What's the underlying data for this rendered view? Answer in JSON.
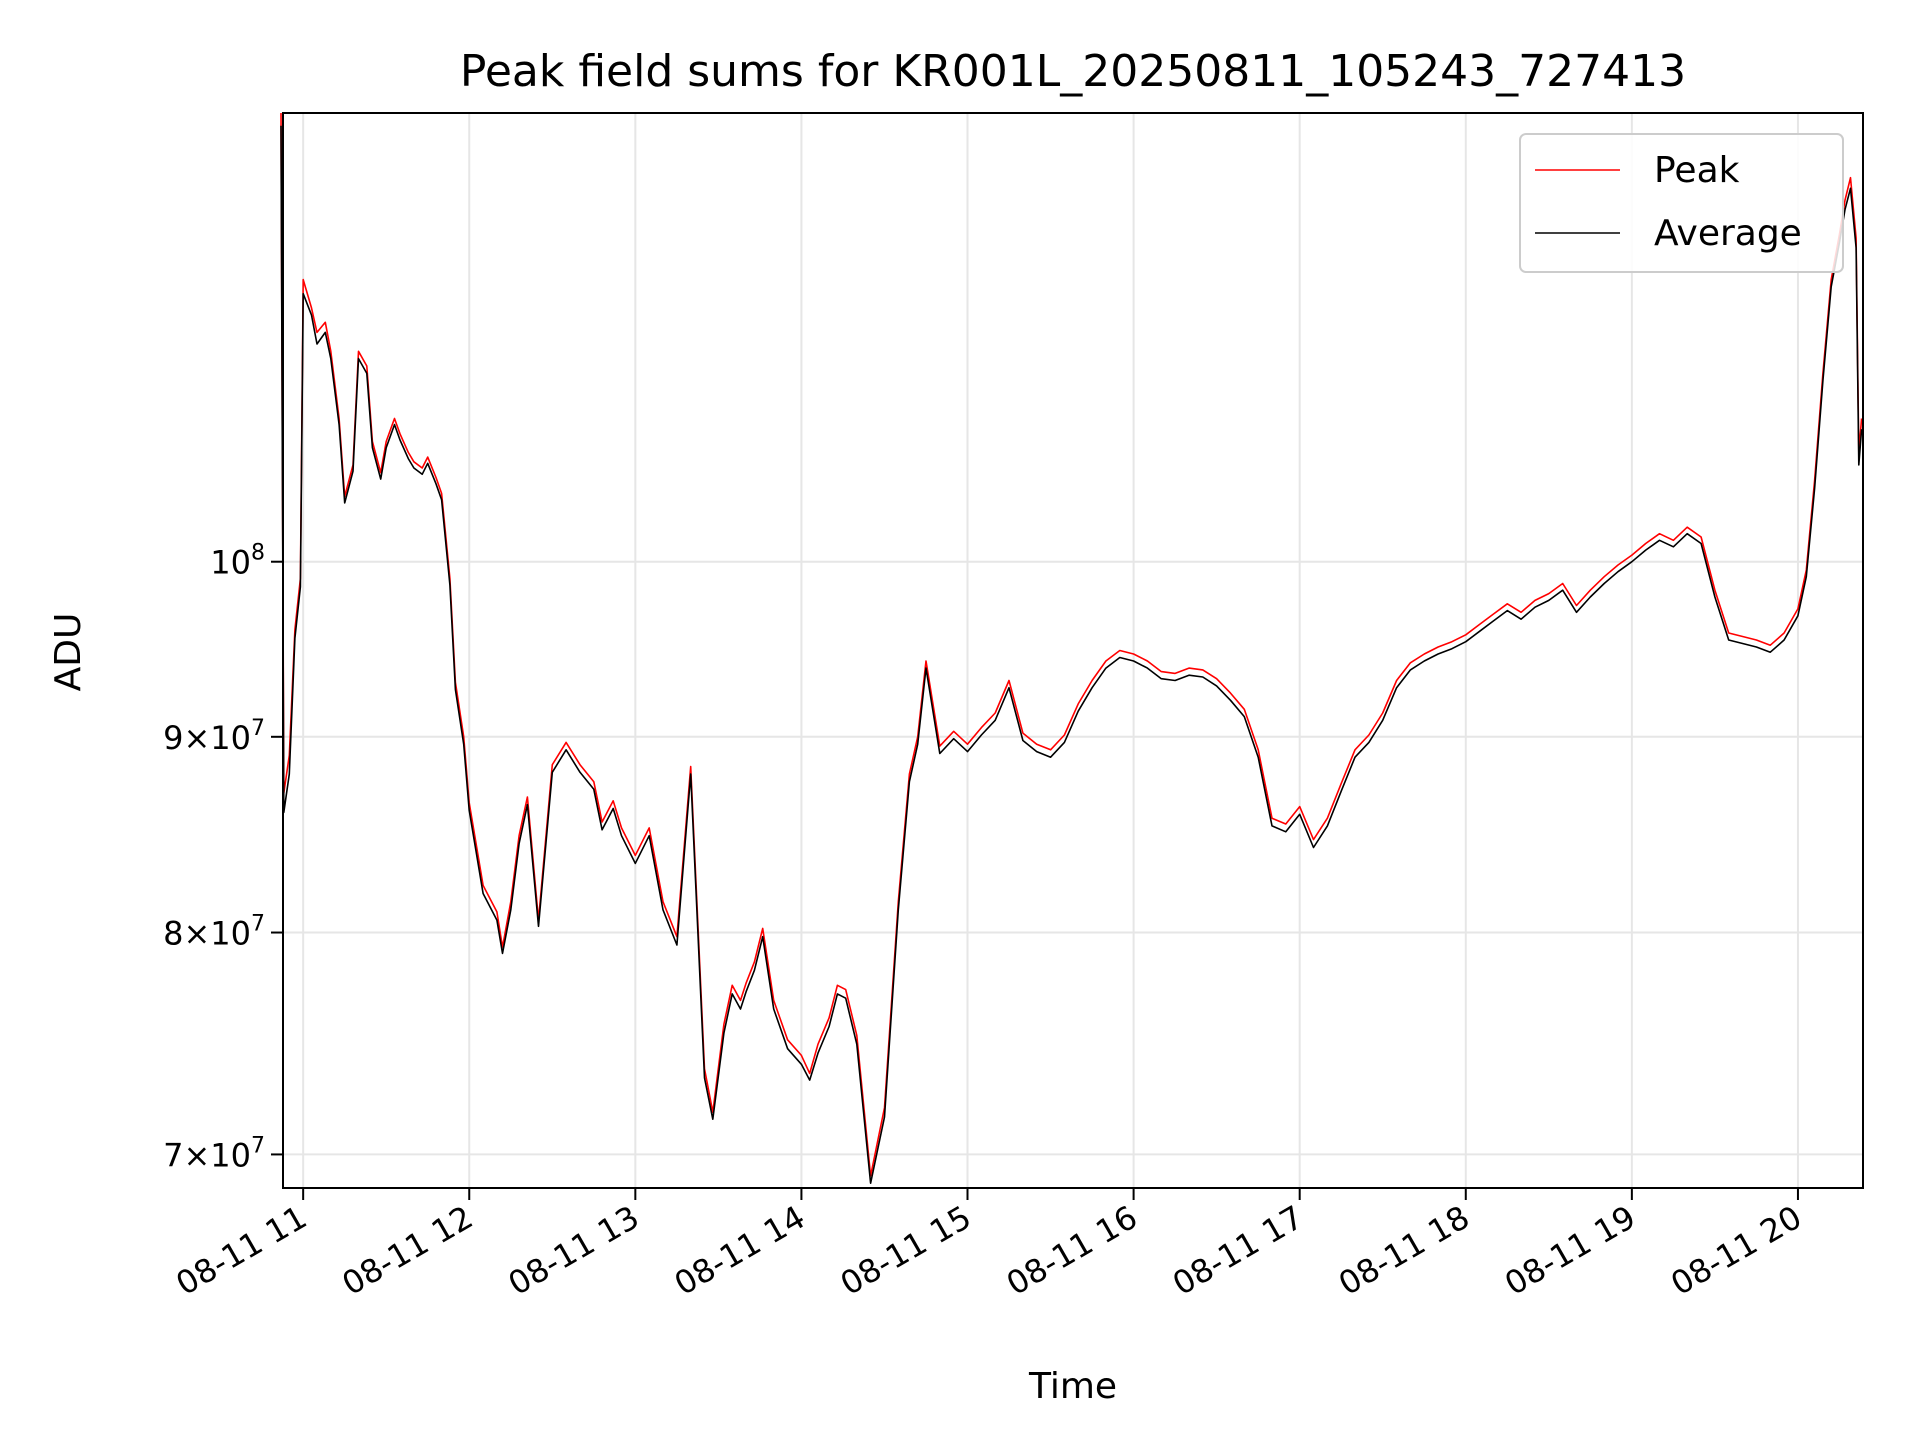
{
  "chart_data": {
    "type": "line",
    "title": "Peak field sums for KR001L_20250811_105243_727413",
    "xlabel": "Time",
    "ylabel": "ADU",
    "x_axis": {
      "type": "time",
      "range": [
        "2025-08-11T10:52:43",
        "2025-08-11T20:23:30"
      ],
      "ticks": [
        {
          "value": "2025-08-11T11:00",
          "label": "08-11 11"
        },
        {
          "value": "2025-08-11T12:00",
          "label": "08-11 12"
        },
        {
          "value": "2025-08-11T13:00",
          "label": "08-11 13"
        },
        {
          "value": "2025-08-11T14:00",
          "label": "08-11 14"
        },
        {
          "value": "2025-08-11T15:00",
          "label": "08-11 15"
        },
        {
          "value": "2025-08-11T16:00",
          "label": "08-11 16"
        },
        {
          "value": "2025-08-11T17:00",
          "label": "08-11 17"
        },
        {
          "value": "2025-08-11T18:00",
          "label": "08-11 18"
        },
        {
          "value": "2025-08-11T19:00",
          "label": "08-11 19"
        },
        {
          "value": "2025-08-11T20:00",
          "label": "08-11 20"
        }
      ]
    },
    "y_axis": {
      "scale": "log",
      "range": [
        68600000,
        131000000
      ],
      "ticks": [
        {
          "value": 70000000,
          "mantissa": "7",
          "base": "10",
          "exp": "7"
        },
        {
          "value": 80000000,
          "mantissa": "8",
          "base": "10",
          "exp": "7"
        },
        {
          "value": 90000000,
          "mantissa": "9",
          "base": "10",
          "exp": "7"
        },
        {
          "value": 100000000,
          "mantissa": "",
          "base": "10",
          "exp": "8"
        }
      ]
    },
    "grid": true,
    "legend_position": "upper-right",
    "series": [
      {
        "name": "Peak",
        "color": "#ff0000",
        "x": [
          "10:52",
          "10:53",
          "10:55",
          "10:57",
          "10:59",
          "11:00",
          "11:03",
          "11:05",
          "11:08",
          "11:10",
          "11:13",
          "11:15",
          "11:18",
          "11:20",
          "11:23",
          "11:25",
          "11:28",
          "11:30",
          "11:33",
          "11:35",
          "11:38",
          "11:40",
          "11:43",
          "11:45",
          "11:48",
          "11:50",
          "11:53",
          "11:55",
          "11:58",
          "12:00",
          "12:05",
          "12:10",
          "12:12",
          "12:15",
          "12:18",
          "12:21",
          "12:25",
          "12:30",
          "12:35",
          "12:40",
          "12:45",
          "12:48",
          "12:52",
          "12:55",
          "13:00",
          "13:05",
          "13:10",
          "13:15",
          "13:20",
          "13:25",
          "13:28",
          "13:32",
          "13:35",
          "13:38",
          "13:40",
          "13:43",
          "13:46",
          "13:50",
          "13:55",
          "14:00",
          "14:03",
          "14:06",
          "14:10",
          "14:13",
          "14:16",
          "14:20",
          "14:25",
          "14:30",
          "14:35",
          "14:39",
          "14:42",
          "14:45",
          "14:50",
          "14:55",
          "15:00",
          "15:05",
          "15:10",
          "15:15",
          "15:20",
          "15:25",
          "15:30",
          "15:35",
          "15:40",
          "15:45",
          "15:50",
          "15:55",
          "16:00",
          "16:05",
          "16:10",
          "16:15",
          "16:20",
          "16:25",
          "16:30",
          "16:35",
          "16:40",
          "16:45",
          "16:50",
          "16:55",
          "17:00",
          "17:05",
          "17:10",
          "17:15",
          "17:20",
          "17:25",
          "17:30",
          "17:35",
          "17:40",
          "17:45",
          "17:50",
          "17:55",
          "18:00",
          "18:05",
          "18:10",
          "18:15",
          "18:20",
          "18:25",
          "18:30",
          "18:35",
          "18:40",
          "18:45",
          "18:50",
          "18:55",
          "19:00",
          "19:05",
          "19:10",
          "19:15",
          "19:20",
          "19:25",
          "19:30",
          "19:35",
          "19:40",
          "19:45",
          "19:50",
          "19:55",
          "20:00",
          "20:03",
          "20:06",
          "20:09",
          "20:12",
          "20:15",
          "20:17",
          "20:19",
          "20:21",
          "20:22",
          "20:23"
        ],
        "values": [
          131000000,
          87000000,
          89000000,
          96000000,
          99000000,
          118500000,
          116500000,
          114800000,
          115500000,
          113500000,
          109000000,
          104000000,
          106000000,
          113500000,
          112500000,
          107500000,
          105500000,
          107500000,
          109000000,
          108000000,
          106800000,
          106200000,
          105800000,
          106500000,
          105200000,
          104200000,
          99000000,
          93000000,
          90000000,
          86500000,
          82300000,
          81000000,
          79300000,
          81500000,
          84800000,
          86800000,
          80600000,
          88500000,
          89700000,
          88500000,
          87600000,
          85500000,
          86600000,
          85200000,
          83800000,
          85200000,
          81500000,
          79800000,
          88400000,
          73700000,
          71800000,
          75700000,
          77500000,
          76800000,
          77600000,
          78600000,
          80200000,
          76800000,
          75000000,
          74300000,
          73500000,
          74800000,
          76000000,
          77500000,
          77300000,
          75200000,
          69100000,
          72000000,
          81500000,
          88000000,
          90000000,
          94200000,
          89500000,
          90300000,
          89600000,
          90500000,
          91300000,
          93100000,
          90200000,
          89600000,
          89300000,
          90100000,
          91800000,
          93100000,
          94200000,
          94800000,
          94600000,
          94200000,
          93600000,
          93500000,
          93800000,
          93700000,
          93200000,
          92400000,
          91500000,
          89300000,
          85700000,
          85400000,
          86300000,
          84600000,
          85700000,
          87500000,
          89300000,
          90100000,
          91300000,
          93100000,
          94100000,
          94600000,
          95000000,
          95300000,
          95700000,
          96300000,
          96900000,
          97500000,
          97000000,
          97700000,
          98100000,
          98700000,
          97400000,
          98300000,
          99100000,
          99800000,
          100400000,
          101100000,
          101700000,
          101300000,
          102100000,
          101500000,
          98300000,
          95800000,
          95600000,
          95400000,
          95100000,
          95800000,
          97200000,
          99500000,
          105000000,
          112000000,
          118500000,
          121800000,
          124300000,
          126000000,
          121500000,
          106800000,
          109000000
        ]
      },
      {
        "name": "Average",
        "color": "#000000",
        "x": [
          "10:52",
          "10:53",
          "10:55",
          "10:57",
          "10:59",
          "11:00",
          "11:03",
          "11:05",
          "11:08",
          "11:10",
          "11:13",
          "11:15",
          "11:18",
          "11:20",
          "11:23",
          "11:25",
          "11:28",
          "11:30",
          "11:33",
          "11:35",
          "11:38",
          "11:40",
          "11:43",
          "11:45",
          "11:48",
          "11:50",
          "11:53",
          "11:55",
          "11:58",
          "12:00",
          "12:05",
          "12:10",
          "12:12",
          "12:15",
          "12:18",
          "12:21",
          "12:25",
          "12:30",
          "12:35",
          "12:40",
          "12:45",
          "12:48",
          "12:52",
          "12:55",
          "13:00",
          "13:05",
          "13:10",
          "13:15",
          "13:20",
          "13:25",
          "13:28",
          "13:32",
          "13:35",
          "13:38",
          "13:40",
          "13:43",
          "13:46",
          "13:50",
          "13:55",
          "14:00",
          "14:03",
          "14:06",
          "14:10",
          "14:13",
          "14:16",
          "14:20",
          "14:25",
          "14:30",
          "14:35",
          "14:39",
          "14:42",
          "14:45",
          "14:50",
          "14:55",
          "15:00",
          "15:05",
          "15:10",
          "15:15",
          "15:20",
          "15:25",
          "15:30",
          "15:35",
          "15:40",
          "15:45",
          "15:50",
          "15:55",
          "16:00",
          "16:05",
          "16:10",
          "16:15",
          "16:20",
          "16:25",
          "16:30",
          "16:35",
          "16:40",
          "16:45",
          "16:50",
          "16:55",
          "17:00",
          "17:05",
          "17:10",
          "17:15",
          "17:20",
          "17:25",
          "17:30",
          "17:35",
          "17:40",
          "17:45",
          "17:50",
          "17:55",
          "18:00",
          "18:05",
          "18:10",
          "18:15",
          "18:20",
          "18:25",
          "18:30",
          "18:35",
          "18:40",
          "18:45",
          "18:50",
          "18:55",
          "19:00",
          "19:05",
          "19:10",
          "19:15",
          "19:20",
          "19:25",
          "19:30",
          "19:35",
          "19:40",
          "19:45",
          "19:50",
          "19:55",
          "20:00",
          "20:03",
          "20:06",
          "20:09",
          "20:12",
          "20:15",
          "20:17",
          "20:19",
          "20:21",
          "20:22",
          "20:23"
        ],
        "values": [
          130000000,
          86000000,
          88000000,
          95500000,
          98500000,
          117500000,
          116000000,
          114000000,
          114800000,
          113000000,
          108600000,
          103600000,
          105600000,
          113000000,
          112000000,
          107100000,
          105100000,
          107100000,
          108600000,
          107600000,
          106400000,
          105800000,
          105400000,
          106100000,
          104800000,
          103800000,
          98600000,
          92600000,
          89600000,
          86100000,
          81900000,
          80600000,
          79000000,
          81100000,
          84400000,
          86400000,
          80300000,
          88100000,
          89300000,
          88100000,
          87200000,
          85100000,
          86200000,
          84800000,
          83400000,
          84800000,
          81100000,
          79400000,
          88000000,
          73300000,
          71500000,
          75300000,
          77100000,
          76400000,
          77200000,
          78200000,
          79800000,
          76400000,
          74600000,
          73900000,
          73200000,
          74400000,
          75600000,
          77100000,
          76900000,
          74800000,
          68800000,
          71600000,
          81100000,
          87600000,
          89600000,
          93800000,
          89100000,
          89900000,
          89200000,
          90100000,
          90900000,
          92700000,
          89800000,
          89200000,
          88900000,
          89700000,
          91400000,
          92700000,
          93800000,
          94400000,
          94200000,
          93800000,
          93200000,
          93100000,
          93400000,
          93300000,
          92800000,
          92000000,
          91100000,
          88900000,
          85300000,
          85000000,
          85900000,
          84200000,
          85300000,
          87100000,
          88900000,
          89700000,
          90900000,
          92700000,
          93700000,
          94200000,
          94600000,
          94900000,
          95300000,
          95900000,
          96500000,
          97100000,
          96600000,
          97300000,
          97700000,
          98300000,
          97000000,
          97900000,
          98700000,
          99400000,
          100000000,
          100700000,
          101300000,
          100900000,
          101700000,
          101100000,
          97900000,
          95400000,
          95200000,
          95000000,
          94700000,
          95400000,
          96800000,
          99100000,
          104500000,
          111500000,
          118000000,
          121200000,
          123600000,
          125200000,
          120800000,
          106000000,
          108300000
        ]
      }
    ]
  }
}
